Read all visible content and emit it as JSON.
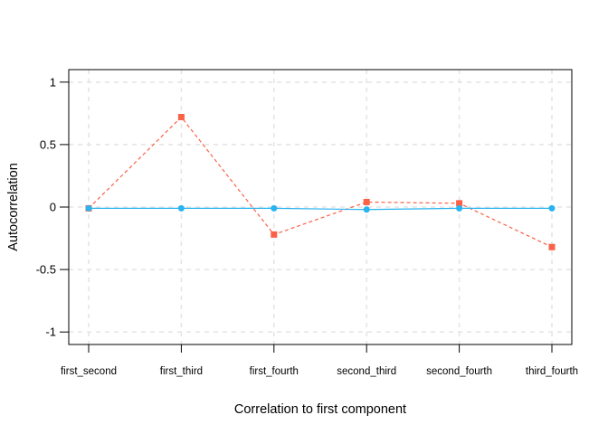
{
  "chart_data": {
    "type": "line",
    "xlabel": "Correlation to first component",
    "ylabel": "Autocorrelation",
    "categories": [
      "first_second",
      "first_third",
      "first_fourth",
      "second_third",
      "second_fourth",
      "third_fourth"
    ],
    "series": [
      {
        "name": "red-dashed-series",
        "values": [
          -0.01,
          0.72,
          -0.22,
          0.04,
          0.03,
          -0.32
        ],
        "color": "#fa6147",
        "line_style": "dashed",
        "marker": "square"
      },
      {
        "name": "blue-solid-series",
        "values": [
          -0.01,
          -0.01,
          -0.01,
          -0.02,
          -0.01,
          -0.01
        ],
        "color": "#29b3f0",
        "line_style": "solid",
        "marker": "circle"
      }
    ],
    "ylim": [
      -1.1,
      1.1
    ],
    "yticks": [
      1,
      0.5,
      0,
      -0.5,
      -1
    ],
    "ytick_labels": [
      "1",
      "0.5",
      "0",
      "-0.5",
      "-1"
    ],
    "grid": "dashed",
    "grid_color": "#e4e4e4",
    "border_color": "#000000",
    "tick_color": "#000000",
    "background": "#ffffff",
    "legend_position": "none"
  }
}
